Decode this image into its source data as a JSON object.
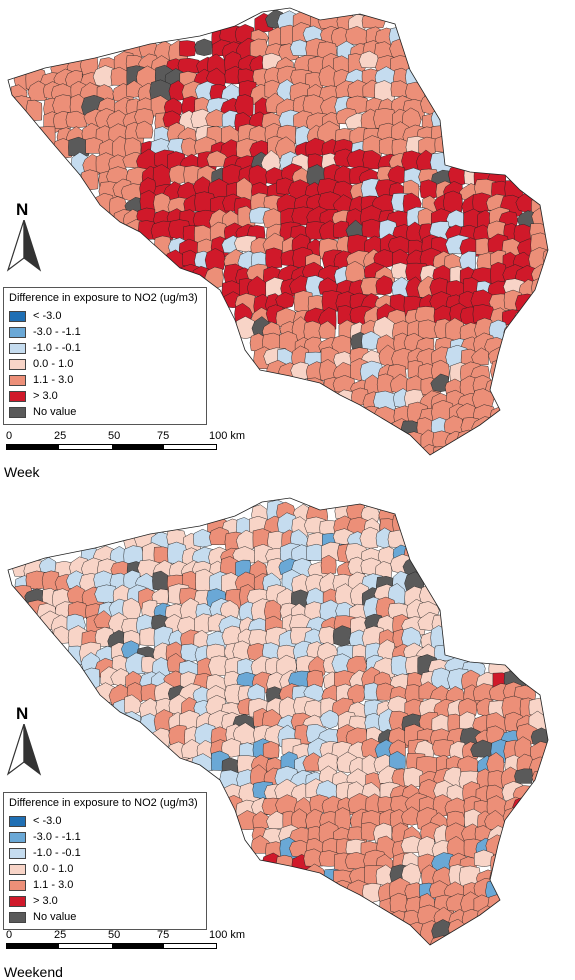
{
  "legend": {
    "title": "Difference in exposure to NO2 (ug/m3)",
    "classes": [
      {
        "label": "< -3.0",
        "color": "#1f6fb4"
      },
      {
        "label": "-3.0 - -1.1",
        "color": "#6aa8d6"
      },
      {
        "label": "-1.0 - -0.1",
        "color": "#c5dcef"
      },
      {
        "label": "0.0 - 1.0",
        "color": "#f8d4c7"
      },
      {
        "label": "1.1 - 3.0",
        "color": "#ec8f78"
      },
      {
        "label": "> 3.0",
        "color": "#d0192a"
      },
      {
        "label": "No value",
        "color": "#5a5a5a"
      }
    ]
  },
  "north_arrow": {
    "label": "N",
    "icon": "north-arrow-icon"
  },
  "scale": {
    "ticks": [
      "0",
      "25",
      "50",
      "75",
      "100 km"
    ]
  },
  "panels": [
    {
      "label": "Week",
      "dominant_classes": [
        "1.1 - 3.0",
        "> 3.0"
      ]
    },
    {
      "label": "Weekend",
      "dominant_classes": [
        "0.0 - 1.0",
        "-1.0 - -0.1",
        "1.1 - 3.0"
      ]
    }
  ]
}
